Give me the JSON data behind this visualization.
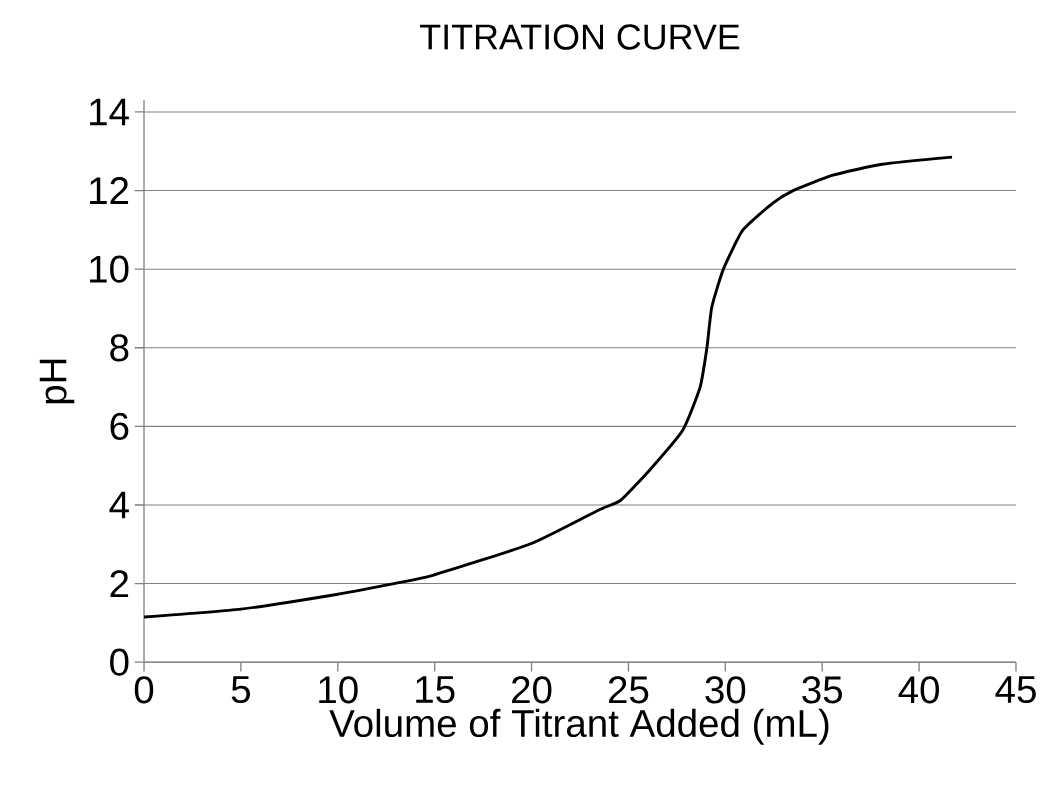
{
  "chart_data": {
    "type": "line",
    "title": "TITRATION CURVE",
    "xlabel": "Volume of Titrant Added (mL)",
    "ylabel": "pH",
    "series": [
      {
        "color": "#000000",
        "x": [
          0,
          5,
          10,
          12.9,
          14.9,
          20,
          23.5,
          24.6,
          26.1,
          27.8,
          28.7,
          29.05,
          29.3,
          29.9,
          30.9,
          32.45,
          33.5,
          35.55,
          38.1,
          41.7
        ],
        "values": [
          1.15,
          1.35,
          1.73,
          2.0,
          2.21,
          3.02,
          3.88,
          4.12,
          4.89,
          5.9,
          7.0,
          8.0,
          9.03,
          10.0,
          10.99,
          11.68,
          12.0,
          12.39,
          12.67,
          12.85
        ]
      }
    ],
    "xlim": [
      0,
      45
    ],
    "ylim": [
      0,
      14.3
    ],
    "xticks": [
      0,
      5,
      10,
      15,
      20,
      25,
      30,
      35,
      40,
      45
    ],
    "yticks": [
      0,
      2,
      4,
      6,
      8,
      10,
      12,
      14
    ],
    "grid": "y",
    "marker": "none",
    "line_style": "solid"
  }
}
